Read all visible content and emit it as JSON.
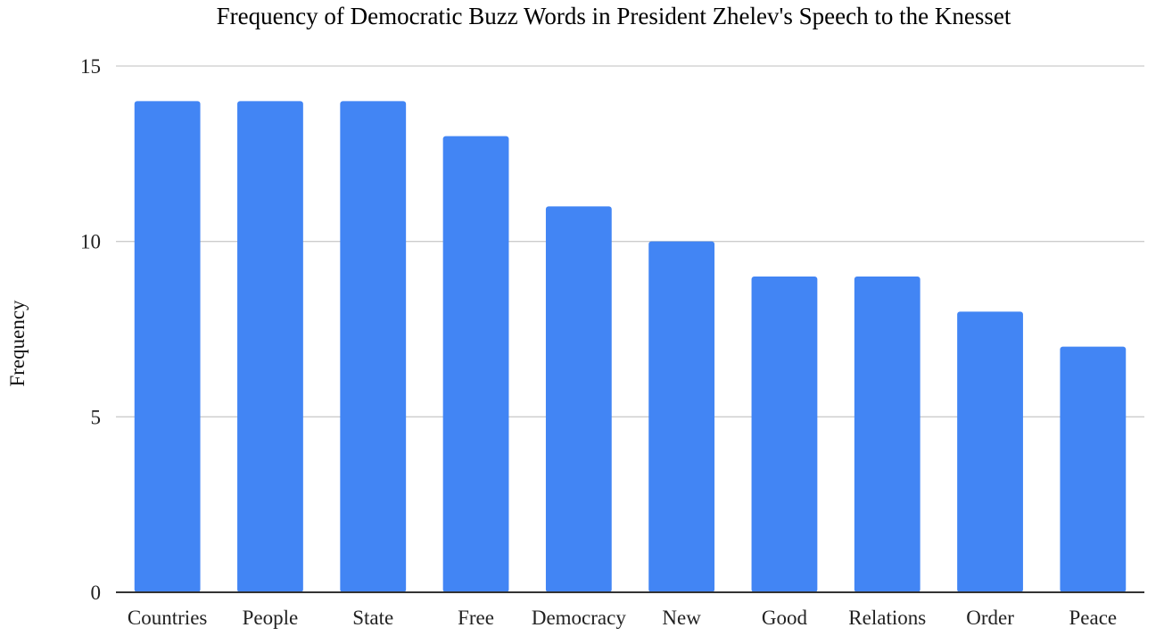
{
  "chart_data": {
    "type": "bar",
    "title": "Frequency of Democratic Buzz Words in President Zhelev's Speech to the Knesset",
    "xlabel": "",
    "ylabel": "Frequency",
    "categories": [
      "Countries",
      "People",
      "State",
      "Free",
      "Democracy",
      "New",
      "Good",
      "Relations",
      "Order",
      "Peace"
    ],
    "values": [
      14,
      14,
      14,
      13,
      11,
      10,
      9,
      9,
      8,
      7
    ],
    "ylim": [
      0,
      15
    ],
    "yticks": [
      0,
      5,
      10,
      15
    ],
    "ytick_labels": [
      "0",
      "5",
      "10",
      "15"
    ],
    "grid": true,
    "legend": "none",
    "colors": {
      "bar": "#4285f4",
      "grid": "#cccccc",
      "axis": "#333333"
    }
  }
}
